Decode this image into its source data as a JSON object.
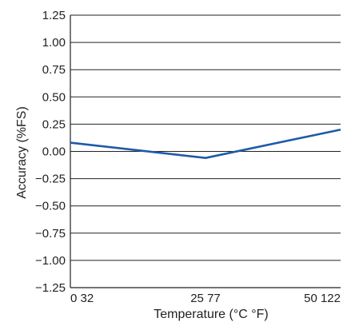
{
  "chart_data": {
    "type": "line",
    "title": "",
    "xlabel": "Temperature (°C °F)",
    "ylabel": "Accuracy (%FS)",
    "xlim": [
      0,
      50
    ],
    "ylim": [
      -1.25,
      1.25
    ],
    "grid": {
      "horizontal": true,
      "vertical": false
    },
    "x_ticks": [
      {
        "value": 0,
        "label": "0 32"
      },
      {
        "value": 25,
        "label": "25 77"
      },
      {
        "value": 50,
        "label": "50 122"
      }
    ],
    "y_ticks": [
      {
        "value": 1.25,
        "label": "1.25"
      },
      {
        "value": 1.0,
        "label": "1.00"
      },
      {
        "value": 0.75,
        "label": "0.75"
      },
      {
        "value": 0.5,
        "label": "0.50"
      },
      {
        "value": 0.25,
        "label": "0.25"
      },
      {
        "value": 0.0,
        "label": "0.00"
      },
      {
        "value": -0.25,
        "label": "−0.25"
      },
      {
        "value": -0.5,
        "label": "−0.50"
      },
      {
        "value": -0.75,
        "label": "−0.75"
      },
      {
        "value": -1.0,
        "label": "−1.00"
      },
      {
        "value": -1.25,
        "label": "−1.25"
      }
    ],
    "series": [
      {
        "x": [
          0,
          25,
          50
        ],
        "y": [
          0.08,
          -0.06,
          0.2
        ],
        "color": "#1f5aa6"
      }
    ],
    "colors": {
      "line": "#1f5aa6",
      "grid": "#222222",
      "axis": "#222222",
      "text": "#222222"
    }
  }
}
